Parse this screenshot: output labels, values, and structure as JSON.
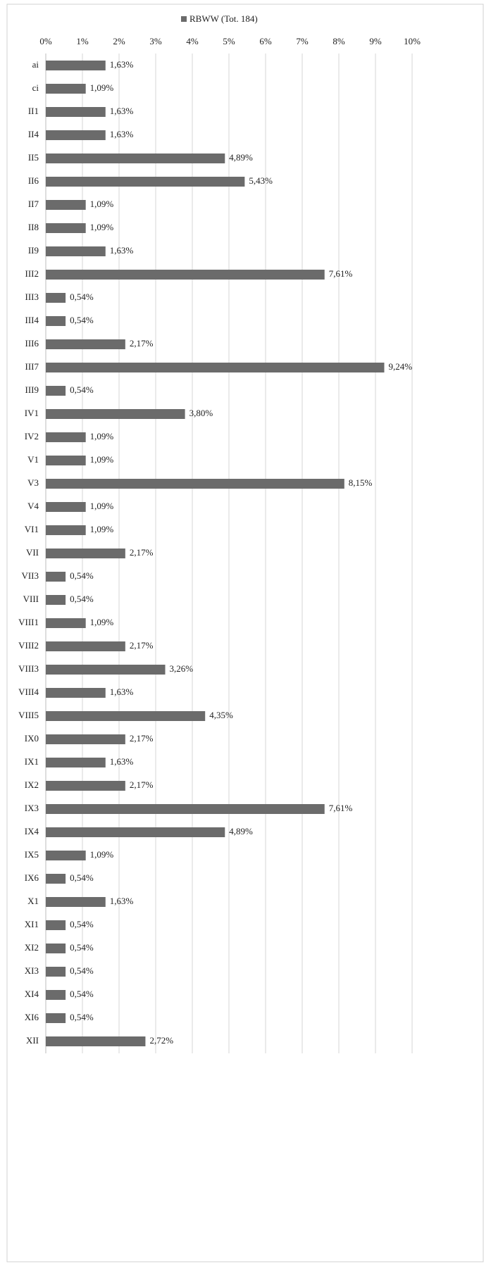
{
  "chart_data": {
    "type": "bar",
    "orientation": "horizontal",
    "legend": "top",
    "series": [
      {
        "name": "RBWW (Tot. 184)",
        "color": "#6b6b6b",
        "values": [
          1.63,
          1.09,
          1.63,
          1.63,
          4.89,
          5.43,
          1.09,
          1.09,
          1.63,
          7.61,
          0.54,
          0.54,
          2.17,
          9.24,
          0.54,
          3.8,
          1.09,
          1.09,
          8.15,
          1.09,
          1.09,
          2.17,
          0.54,
          0.54,
          1.09,
          2.17,
          3.26,
          1.63,
          4.35,
          2.17,
          1.63,
          2.17,
          7.61,
          4.89,
          1.09,
          0.54,
          1.63,
          0.54,
          0.54,
          0.54,
          0.54,
          0.54,
          2.72
        ],
        "value_labels": [
          "1,63%",
          "1,09%",
          "1,63%",
          "1,63%",
          "4,89%",
          "5,43%",
          "1,09%",
          "1,09%",
          "1,63%",
          "7,61%",
          "0,54%",
          "0,54%",
          "2,17%",
          "9,24%",
          "0,54%",
          "3,80%",
          "1,09%",
          "1,09%",
          "8,15%",
          "1,09%",
          "1,09%",
          "2,17%",
          "0,54%",
          "0,54%",
          "1,09%",
          "2,17%",
          "3,26%",
          "1,63%",
          "4,35%",
          "2,17%",
          "1,63%",
          "2,17%",
          "7,61%",
          "4,89%",
          "1,09%",
          "0,54%",
          "1,63%",
          "0,54%",
          "0,54%",
          "0,54%",
          "0,54%",
          "0,54%",
          "2,72%"
        ]
      }
    ],
    "categories": [
      "ai",
      "ci",
      "II1",
      "II4",
      "II5",
      "II6",
      "II7",
      "II8",
      "II9",
      "III2",
      "III3",
      "III4",
      "III6",
      "III7",
      "III9",
      "IV1",
      "IV2",
      "V1",
      "V3",
      "V4",
      "VI1",
      "VII",
      "VII3",
      "VIII",
      "VIII1",
      "VIII2",
      "VIII3",
      "VIII4",
      "VIII5",
      "IX0",
      "IX1",
      "IX2",
      "IX3",
      "IX4",
      "IX5",
      "IX6",
      "X1",
      "XI1",
      "XI2",
      "XI3",
      "XI4",
      "XI6",
      "XII"
    ],
    "xlim": [
      0,
      10
    ],
    "xticks": [
      {
        "value": 0,
        "label": "0%"
      },
      {
        "value": 1,
        "label": "1%"
      },
      {
        "value": 2,
        "label": "2%"
      },
      {
        "value": 3,
        "label": "3%"
      },
      {
        "value": 4,
        "label": "4%"
      },
      {
        "value": 5,
        "label": "5%"
      },
      {
        "value": 6,
        "label": "6%"
      },
      {
        "value": 7,
        "label": "7%"
      },
      {
        "value": 8,
        "label": "8%"
      },
      {
        "value": 9,
        "label": "9%"
      },
      {
        "value": 10,
        "label": "10%"
      }
    ],
    "grid": true
  }
}
